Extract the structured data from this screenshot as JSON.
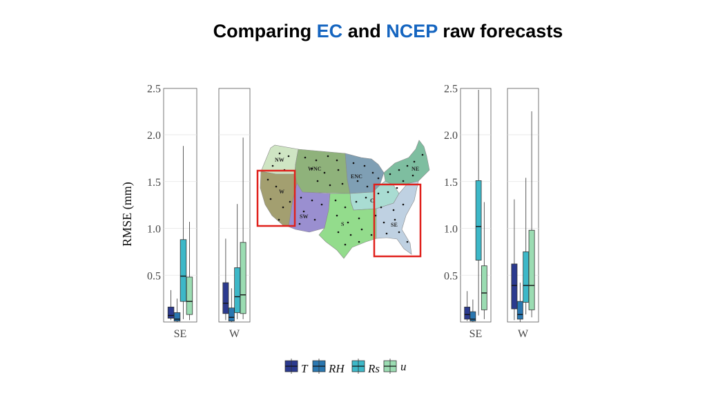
{
  "title": {
    "part1": "Comparing ",
    "ec": "EC",
    "part2": " and ",
    "ncep": "NCEP",
    "part3": " raw forecasts",
    "highlight_color": "#1565c0"
  },
  "y_axis_label": "RMSE (mm)",
  "map": {
    "regions": [
      "NW",
      "WNC",
      "ENC",
      "NE",
      "W",
      "C",
      "SW",
      "S",
      "SE"
    ],
    "highlighted_regions": [
      "W",
      "SE"
    ],
    "highlight_color": "#e0201b"
  },
  "legend": {
    "items": [
      {
        "label": "T",
        "color": "#2b3a8f"
      },
      {
        "label": "RH",
        "color": "#2a77b0"
      },
      {
        "label": "Rs",
        "color": "#3db8c8"
      },
      {
        "label": "u",
        "color": "#9bdcb2"
      }
    ]
  },
  "chart_data": [
    {
      "type": "box",
      "model": "EC",
      "ylabel": "RMSE (mm)",
      "ylim": [
        0,
        2.5
      ],
      "yticks": [
        "0.5",
        "1.0",
        "1.5",
        "2.0",
        "2.5"
      ],
      "panels": [
        {
          "category": "SE",
          "series": [
            {
              "name": "T",
              "min": 0.02,
              "q1": 0.04,
              "median": 0.07,
              "q3": 0.16,
              "max": 0.34
            },
            {
              "name": "RH",
              "min": 0.0,
              "q1": 0.01,
              "median": 0.03,
              "q3": 0.1,
              "max": 0.25
            },
            {
              "name": "Rs",
              "min": 0.03,
              "q1": 0.22,
              "median": 0.49,
              "q3": 0.88,
              "max": 1.88
            },
            {
              "name": "u",
              "min": 0.02,
              "q1": 0.08,
              "median": 0.22,
              "q3": 0.48,
              "max": 1.07
            }
          ]
        },
        {
          "category": "W",
          "series": [
            {
              "name": "T",
              "min": 0.02,
              "q1": 0.09,
              "median": 0.2,
              "q3": 0.42,
              "max": 0.89
            },
            {
              "name": "RH",
              "min": 0.0,
              "q1": 0.01,
              "median": 0.05,
              "q3": 0.15,
              "max": 0.36
            },
            {
              "name": "Rs",
              "min": 0.03,
              "q1": 0.1,
              "median": 0.27,
              "q3": 0.58,
              "max": 1.26
            },
            {
              "name": "u",
              "min": 0.03,
              "q1": 0.09,
              "median": 0.29,
              "q3": 0.85,
              "max": 1.97
            }
          ]
        }
      ]
    },
    {
      "type": "box",
      "model": "NCEP",
      "ylim": [
        0,
        2.5
      ],
      "yticks": [
        "0.5",
        "1.0",
        "1.5",
        "2.0",
        "2.5"
      ],
      "panels": [
        {
          "category": "SE",
          "series": [
            {
              "name": "T",
              "min": 0.01,
              "q1": 0.03,
              "median": 0.08,
              "q3": 0.16,
              "max": 0.33
            },
            {
              "name": "RH",
              "min": 0.0,
              "q1": 0.01,
              "median": 0.03,
              "q3": 0.11,
              "max": 0.24
            },
            {
              "name": "Rs",
              "min": 0.07,
              "q1": 0.66,
              "median": 1.02,
              "q3": 1.51,
              "max": 2.48
            },
            {
              "name": "u",
              "min": 0.03,
              "q1": 0.13,
              "median": 0.31,
              "q3": 0.6,
              "max": 1.28
            }
          ]
        },
        {
          "category": "W",
          "series": [
            {
              "name": "T",
              "min": 0.02,
              "q1": 0.14,
              "median": 0.39,
              "q3": 0.62,
              "max": 1.31
            },
            {
              "name": "RH",
              "min": 0.0,
              "q1": 0.03,
              "median": 0.08,
              "q3": 0.22,
              "max": 0.42
            },
            {
              "name": "Rs",
              "min": 0.08,
              "q1": 0.21,
              "median": 0.39,
              "q3": 0.75,
              "max": 1.54
            },
            {
              "name": "u",
              "min": 0.05,
              "q1": 0.13,
              "median": 0.39,
              "q3": 0.98,
              "max": 2.25
            }
          ]
        }
      ]
    }
  ]
}
